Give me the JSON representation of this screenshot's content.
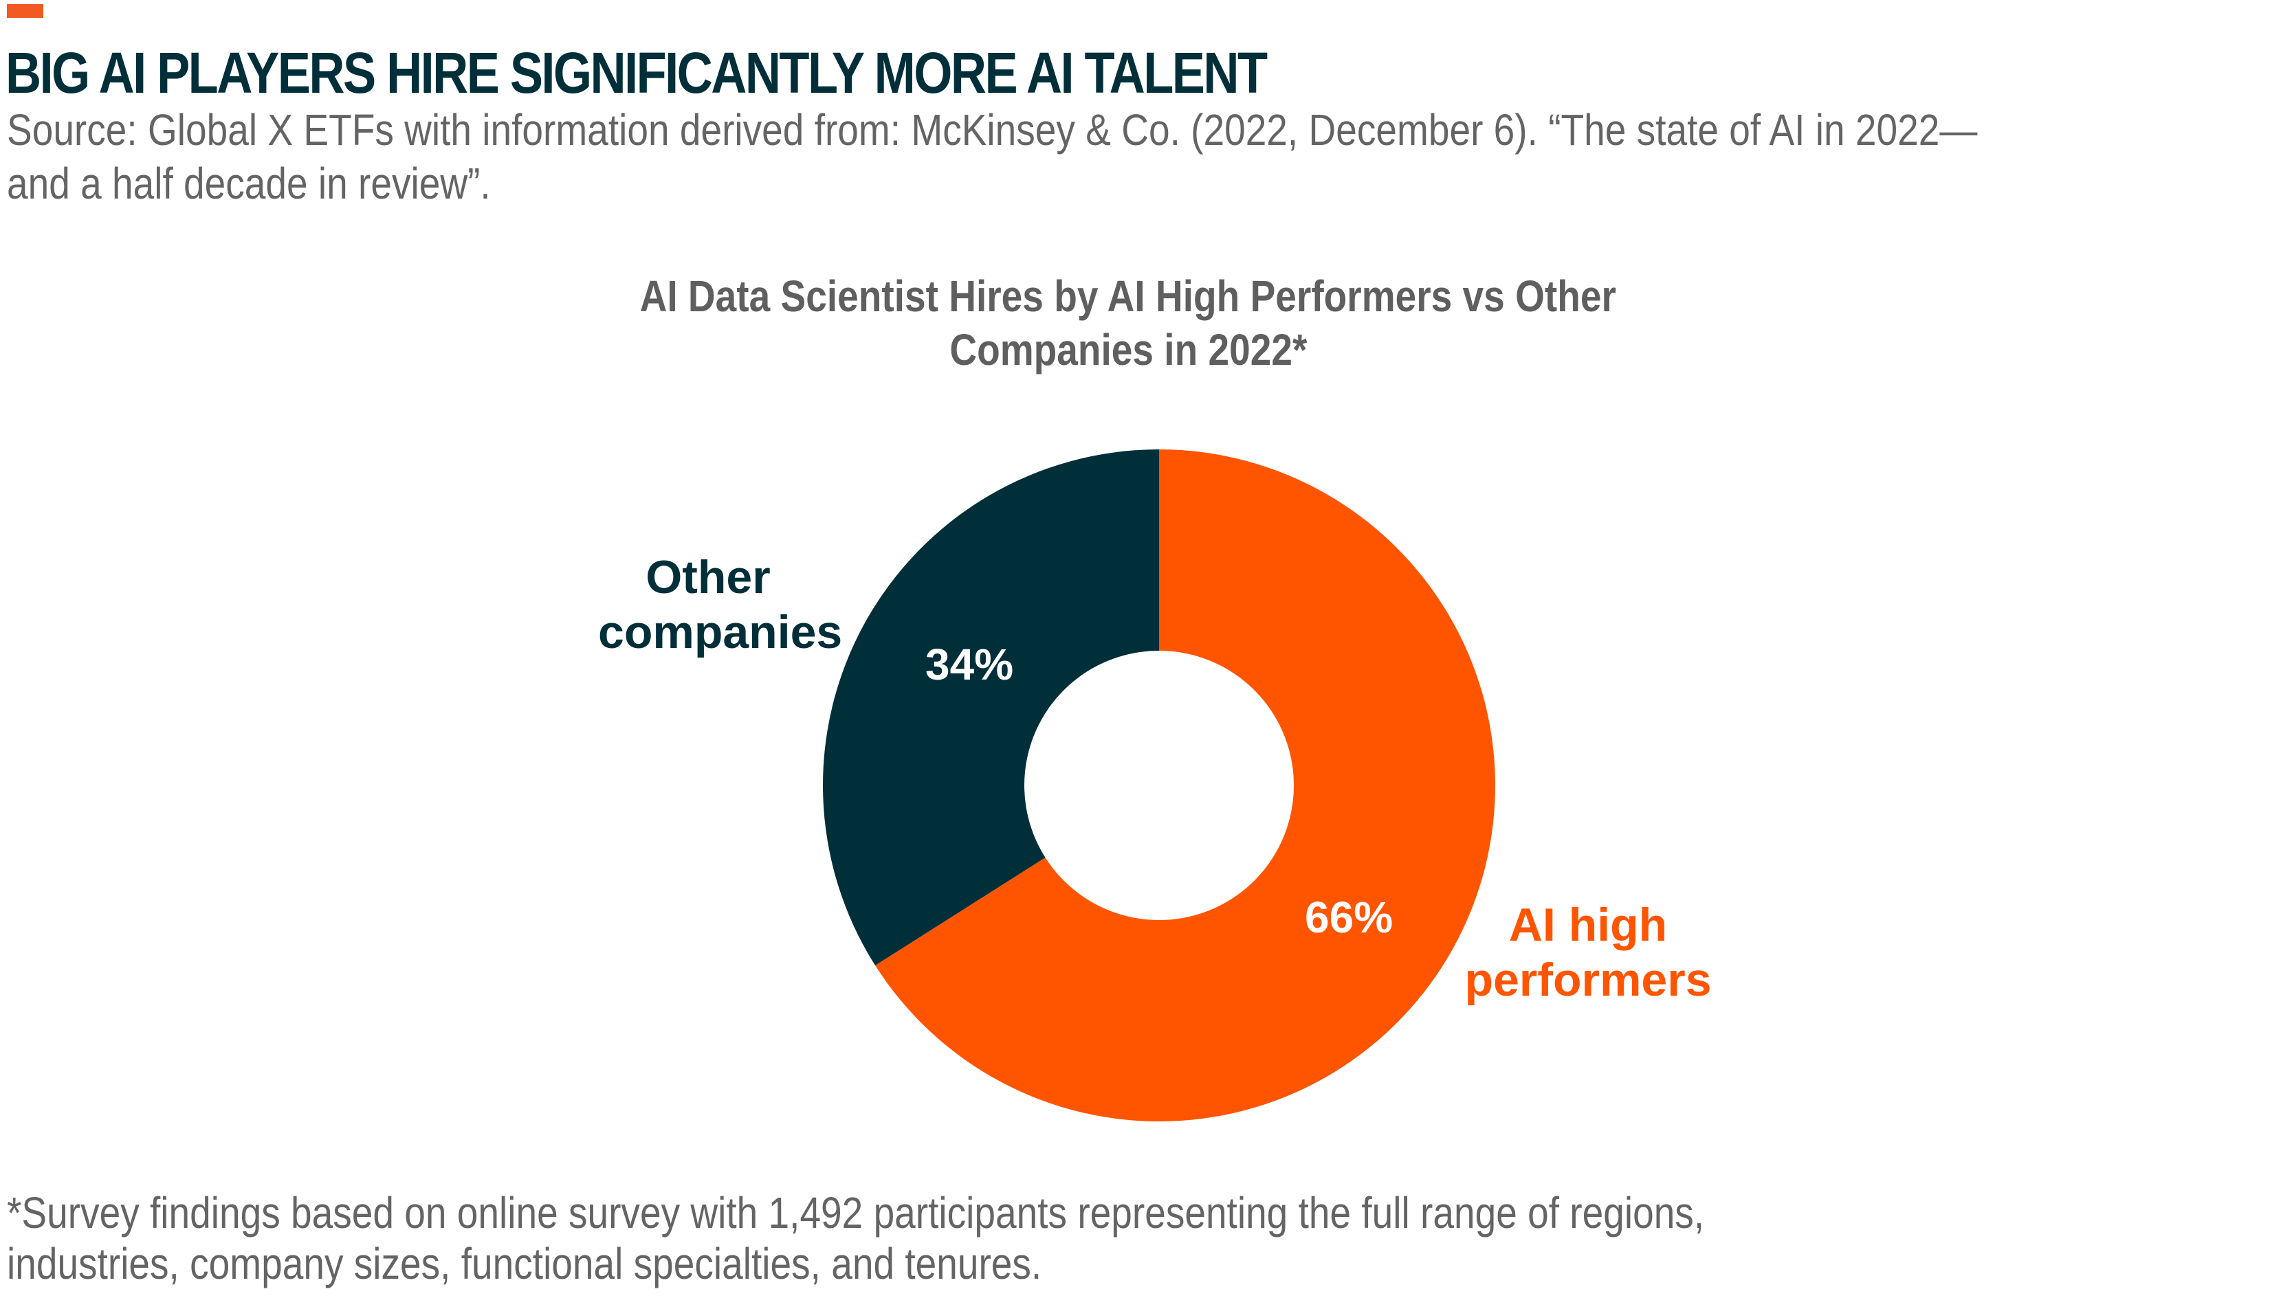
{
  "header": {
    "title": "BIG AI PLAYERS HIRE SIGNIFICANTLY MORE AI TALENT",
    "source_line1": "Source: Global X ETFs with information derived from: McKinsey & Co. (2022, December 6). “The state of AI in 2022—",
    "source_line2": "and a half decade in review”."
  },
  "colors": {
    "accent": "#F15A22",
    "ai_high_performers": "#FF5500",
    "other_companies": "#002F3A",
    "title": "#002F3A",
    "text_gray": "#646464"
  },
  "chart": {
    "title_line1": "AI Data Scientist Hires by AI High Performers vs Other",
    "title_line2": "Companies in 2022*",
    "labels": {
      "other_line1": "Other",
      "other_line2": "companies",
      "ai_line1": "AI high",
      "ai_line2": "performers",
      "other_pct": "34%",
      "ai_pct": "66%"
    }
  },
  "footnote": {
    "line1": "*Survey findings based on online survey with 1,492 participants representing the full range of regions,",
    "line2": "industries, company sizes, functional specialties, and tenures."
  },
  "chart_data": {
    "type": "pie",
    "subtype": "donut",
    "title": "AI Data Scientist Hires by AI High Performers vs Other Companies in 2022*",
    "categories": [
      "AI high performers",
      "Other companies"
    ],
    "values": [
      66,
      34
    ],
    "unit": "%",
    "colors": [
      "#FF5500",
      "#002F3A"
    ],
    "start_angle": "12 o'clock, clockwise",
    "legend": "inline labels beside slices"
  }
}
